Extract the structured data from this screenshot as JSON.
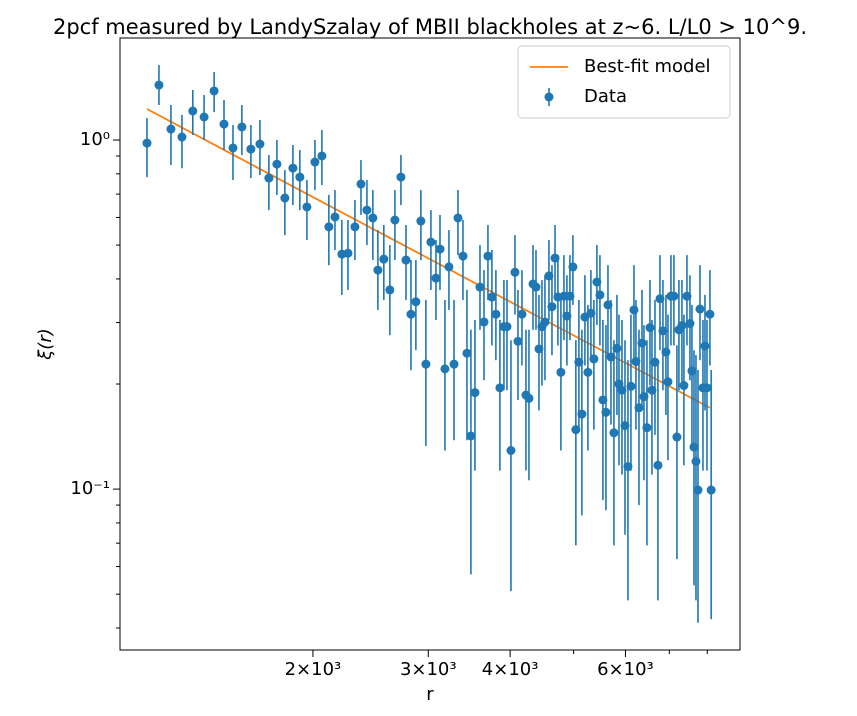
{
  "chart_data": {
    "type": "errorbar",
    "title": "2pcf measured by LandySzalay of MBII blackholes at z~6. L/L0 > 10^9.",
    "xlabel": "r",
    "ylabel": "ξ(r)",
    "xscale": "log",
    "yscale": "log",
    "xlim": [
      1015,
      8975
    ],
    "ylim": [
      0.0346,
      1.96
    ],
    "xticks": [
      {
        "value": 2000,
        "label": "2×10³"
      },
      {
        "value": 3000,
        "label": "3×10³"
      },
      {
        "value": 4000,
        "label": "4×10³"
      },
      {
        "value": 6000,
        "label": "6×10³"
      }
    ],
    "xminor_ticks": [
      5000,
      7000,
      8000
    ],
    "yticks": [
      {
        "value": 0.1,
        "label": "10⁻¹"
      },
      {
        "value": 1,
        "label": "10⁰"
      }
    ],
    "yminor_ticks": [
      0.04,
      0.05,
      0.06,
      0.07,
      0.08,
      0.09,
      0.2,
      0.3,
      0.4,
      0.5,
      0.6,
      0.7,
      0.8,
      0.9
    ],
    "legend": "upper right",
    "series": [
      {
        "name": "Best-fit model",
        "kind": "line",
        "color": "#ff7f0e",
        "x": [
          1116,
          8075
        ],
        "values": [
          1.227,
          0.171
        ]
      },
      {
        "name": "Data",
        "kind": "errorbar",
        "color": "#1f77b4",
        "x": [
          1116,
          1164,
          1214,
          1262,
          1311,
          1364,
          1413,
          1463,
          1510,
          1558,
          1608,
          1660,
          1713,
          1762,
          1812,
          1864,
          1910,
          1958,
          2014,
          2064,
          2115,
          2161,
          2214,
          2262,
          2318,
          2368,
          2418,
          2469,
          2513,
          2566,
          2621,
          2668,
          2725,
          2774,
          2823,
          2872,
          2923,
          2975,
          3028,
          3082,
          3126,
          3181,
          3226,
          3284,
          3330,
          3389,
          3437,
          3485,
          3535,
          3598,
          3649,
          3700,
          3752,
          3805,
          3859,
          3914,
          3956,
          4012,
          4069,
          4112,
          4170,
          4229,
          4274,
          4335,
          4381,
          4427,
          4474,
          4521,
          4585,
          4634,
          4684,
          4732,
          4782,
          4833,
          4884,
          4936,
          4988,
          5040,
          5094,
          5148,
          5203,
          5258,
          5314,
          5370,
          5427,
          5485,
          5543,
          5602,
          5642,
          5702,
          5762,
          5823,
          5865,
          5927,
          5990,
          6053,
          6117,
          6182,
          6225,
          6292,
          6359,
          6403,
          6471,
          6540,
          6586,
          6656,
          6726,
          6774,
          6845,
          6918,
          6967,
          7041,
          7115,
          7190,
          7241,
          7318,
          7369,
          7448,
          7527,
          7580,
          7634,
          7688,
          7743,
          7797,
          7879,
          7935,
          7991,
          8075,
          8110
        ],
        "values": [
          0.98,
          1.437,
          1.075,
          1.02,
          1.211,
          1.164,
          1.382,
          1.111,
          0.949,
          1.09,
          0.942,
          0.974,
          0.778,
          0.853,
          0.682,
          0.831,
          0.783,
          0.643,
          0.865,
          0.9,
          0.564,
          0.602,
          0.471,
          0.474,
          0.564,
          0.748,
          0.63,
          0.598,
          0.424,
          0.456,
          0.372,
          0.59,
          0.783,
          0.453,
          0.317,
          0.344,
          0.586,
          0.228,
          0.51,
          0.402,
          0.487,
          0.221,
          0.433,
          0.228,
          0.598,
          0.465,
          0.245,
          0.142,
          0.189,
          0.379,
          0.301,
          0.465,
          0.355,
          0.317,
          0.195,
          0.292,
          0.292,
          0.129,
          0.418,
          0.265,
          0.317,
          0.186,
          0.182,
          0.387,
          0.379,
          0.252,
          0.292,
          0.301,
          0.408,
          0.333,
          0.459,
          0.355,
          0.216,
          0.357,
          0.313,
          0.357,
          0.433,
          0.148,
          0.231,
          0.164,
          0.311,
          0.216,
          0.319,
          0.236,
          0.392,
          0.36,
          0.18,
          0.166,
          0.337,
          0.239,
          0.145,
          0.253,
          0.2,
          0.192,
          0.152,
          0.116,
          0.197,
          0.326,
          0.232,
          0.171,
          0.262,
          0.184,
          0.15,
          0.29,
          0.192,
          0.231,
          0.117,
          0.351,
          0.284,
          0.247,
          0.203,
          0.357,
          0.357,
          0.141,
          0.286,
          0.294,
          0.198,
          0.357,
          0.298,
          0.218,
          0.132,
          0.12,
          0.0994,
          0.328,
          0.195,
          0.257,
          0.195,
          0.317,
          0.0994
        ],
        "yerr_low": [
          0.197,
          0.177,
          0.227,
          0.19,
          0.177,
          0.164,
          0.179,
          0.175,
          0.181,
          0.184,
          0.164,
          0.18,
          0.148,
          0.157,
          0.148,
          0.18,
          0.153,
          0.126,
          0.146,
          0.157,
          0.126,
          0.118,
          0.111,
          0.102,
          0.111,
          0.138,
          0.13,
          0.145,
          0.098,
          0.108,
          0.096,
          0.137,
          0.132,
          0.105,
          0.098,
          0.094,
          0.133,
          0.095,
          0.138,
          0.097,
          0.115,
          0.092,
          0.107,
          0.09,
          0.13,
          0.117,
          0.107,
          0.085,
          0.076,
          0.093,
          0.096,
          0.117,
          0.097,
          0.083,
          0.082,
          0.1,
          0.1,
          0.078,
          0.102,
          0.085,
          0.091,
          0.073,
          0.076,
          0.101,
          0.093,
          0.084,
          0.094,
          0.096,
          0.103,
          0.091,
          0.111,
          0.097,
          0.087,
          0.09,
          0.087,
          0.09,
          0.096,
          0.079,
          0.083,
          0.08,
          0.085,
          0.087,
          0.085,
          0.088,
          0.097,
          0.102,
          0.087,
          0.079,
          0.095,
          0.086,
          0.076,
          0.09,
          0.083,
          0.082,
          0.078,
          0.068,
          0.084,
          0.092,
          0.084,
          0.081,
          0.088,
          0.078,
          0.081,
          0.092,
          0.082,
          0.088,
          0.069,
          0.101,
          0.092,
          0.084,
          0.082,
          0.099,
          0.099,
          0.078,
          0.094,
          0.096,
          0.081,
          0.099,
          0.093,
          0.085,
          0.079,
          0.072,
          0.058,
          0.094,
          0.082,
          0.089,
          0.082,
          0.091,
          0.057
        ],
        "yerr_high": [
          0.176,
          0.203,
          0.185,
          0.16,
          0.18,
          0.182,
          0.184,
          0.191,
          0.155,
          0.17,
          0.162,
          0.167,
          0.128,
          0.147,
          0.138,
          0.137,
          0.153,
          0.125,
          0.135,
          0.168,
          0.132,
          0.117,
          0.119,
          0.116,
          0.109,
          0.128,
          0.138,
          0.121,
          0.128,
          0.115,
          0.128,
          0.129,
          0.123,
          0.118,
          0.136,
          0.109,
          0.133,
          0.12,
          0.12,
          0.115,
          0.123,
          0.127,
          0.119,
          0.12,
          0.121,
          0.125,
          0.127,
          0.144,
          0.116,
          0.121,
          0.123,
          0.106,
          0.129,
          0.107,
          0.11,
          0.105,
          0.105,
          0.138,
          0.116,
          0.107,
          0.107,
          0.1,
          0.104,
          0.113,
          0.105,
          0.108,
          0.105,
          0.109,
          0.109,
          0.105,
          0.112,
          0.113,
          0.132,
          0.111,
          0.097,
          0.111,
          0.101,
          0.119,
          0.117,
          0.122,
          0.099,
          0.121,
          0.105,
          0.112,
          0.108,
          0.108,
          0.125,
          0.129,
          0.101,
          0.109,
          0.122,
          0.107,
          0.116,
          0.113,
          0.115,
          0.118,
          0.119,
          0.112,
          0.116,
          0.115,
          0.11,
          0.111,
          0.117,
          0.107,
          0.113,
          0.117,
          0.117,
          0.117,
          0.113,
          0.113,
          0.113,
          0.111,
          0.111,
          0.117,
          0.111,
          0.103,
          0.118,
          0.111,
          0.112,
          0.119,
          0.118,
          0.122,
          0.12,
          0.11,
          0.11,
          0.103,
          0.11,
          0.107,
          0.12
        ]
      }
    ]
  }
}
